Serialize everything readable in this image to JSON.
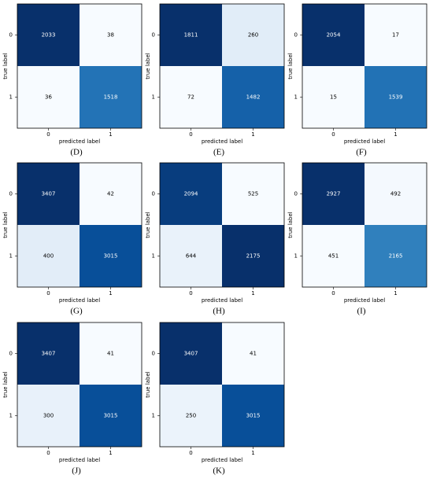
{
  "chart_data": [
    {
      "type": "heatmap",
      "colormap": "Blues",
      "caption": "(D)",
      "xlabel": "predicted label",
      "ylabel": "true label",
      "x": [
        "0",
        "1"
      ],
      "y": [
        "0",
        "1"
      ],
      "values": [
        [
          2033,
          38
        ],
        [
          36,
          1518
        ]
      ]
    },
    {
      "type": "heatmap",
      "colormap": "Blues",
      "caption": "(E)",
      "xlabel": "predicted label",
      "ylabel": "true label",
      "x": [
        "0",
        "1"
      ],
      "y": [
        "0",
        "1"
      ],
      "values": [
        [
          1811,
          260
        ],
        [
          72,
          1482
        ]
      ]
    },
    {
      "type": "heatmap",
      "colormap": "Blues",
      "caption": "(F)",
      "xlabel": "predicted label",
      "ylabel": "true label",
      "x": [
        "0",
        "1"
      ],
      "y": [
        "0",
        "1"
      ],
      "values": [
        [
          2054,
          17
        ],
        [
          15,
          1539
        ]
      ]
    },
    {
      "type": "heatmap",
      "colormap": "Blues",
      "caption": "(G)",
      "xlabel": "predicted label",
      "ylabel": "true label",
      "x": [
        "0",
        "1"
      ],
      "y": [
        "0",
        "1"
      ],
      "values": [
        [
          3407,
          42
        ],
        [
          400,
          3015
        ]
      ]
    },
    {
      "type": "heatmap",
      "colormap": "Blues",
      "caption": "(H)",
      "xlabel": "predicted label",
      "ylabel": "true label",
      "x": [
        "0",
        "1"
      ],
      "y": [
        "0",
        "1"
      ],
      "values": [
        [
          2094,
          525
        ],
        [
          644,
          2175
        ]
      ]
    },
    {
      "type": "heatmap",
      "colormap": "Blues",
      "caption": "(I)",
      "xlabel": "predicted label",
      "ylabel": "true label",
      "x": [
        "0",
        "1"
      ],
      "y": [
        "0",
        "1"
      ],
      "values": [
        [
          2927,
          492
        ],
        [
          451,
          2165
        ]
      ]
    },
    {
      "type": "heatmap",
      "colormap": "Blues",
      "caption": "(J)",
      "xlabel": "predicted label",
      "ylabel": "true label",
      "x": [
        "0",
        "1"
      ],
      "y": [
        "0",
        "1"
      ],
      "values": [
        [
          3407,
          41
        ],
        [
          300,
          3015
        ]
      ]
    },
    {
      "type": "heatmap",
      "colormap": "Blues",
      "caption": "(K)",
      "xlabel": "predicted label",
      "ylabel": "true label",
      "x": [
        "0",
        "1"
      ],
      "y": [
        "0",
        "1"
      ],
      "values": [
        [
          3407,
          41
        ],
        [
          250,
          3015
        ]
      ]
    }
  ]
}
